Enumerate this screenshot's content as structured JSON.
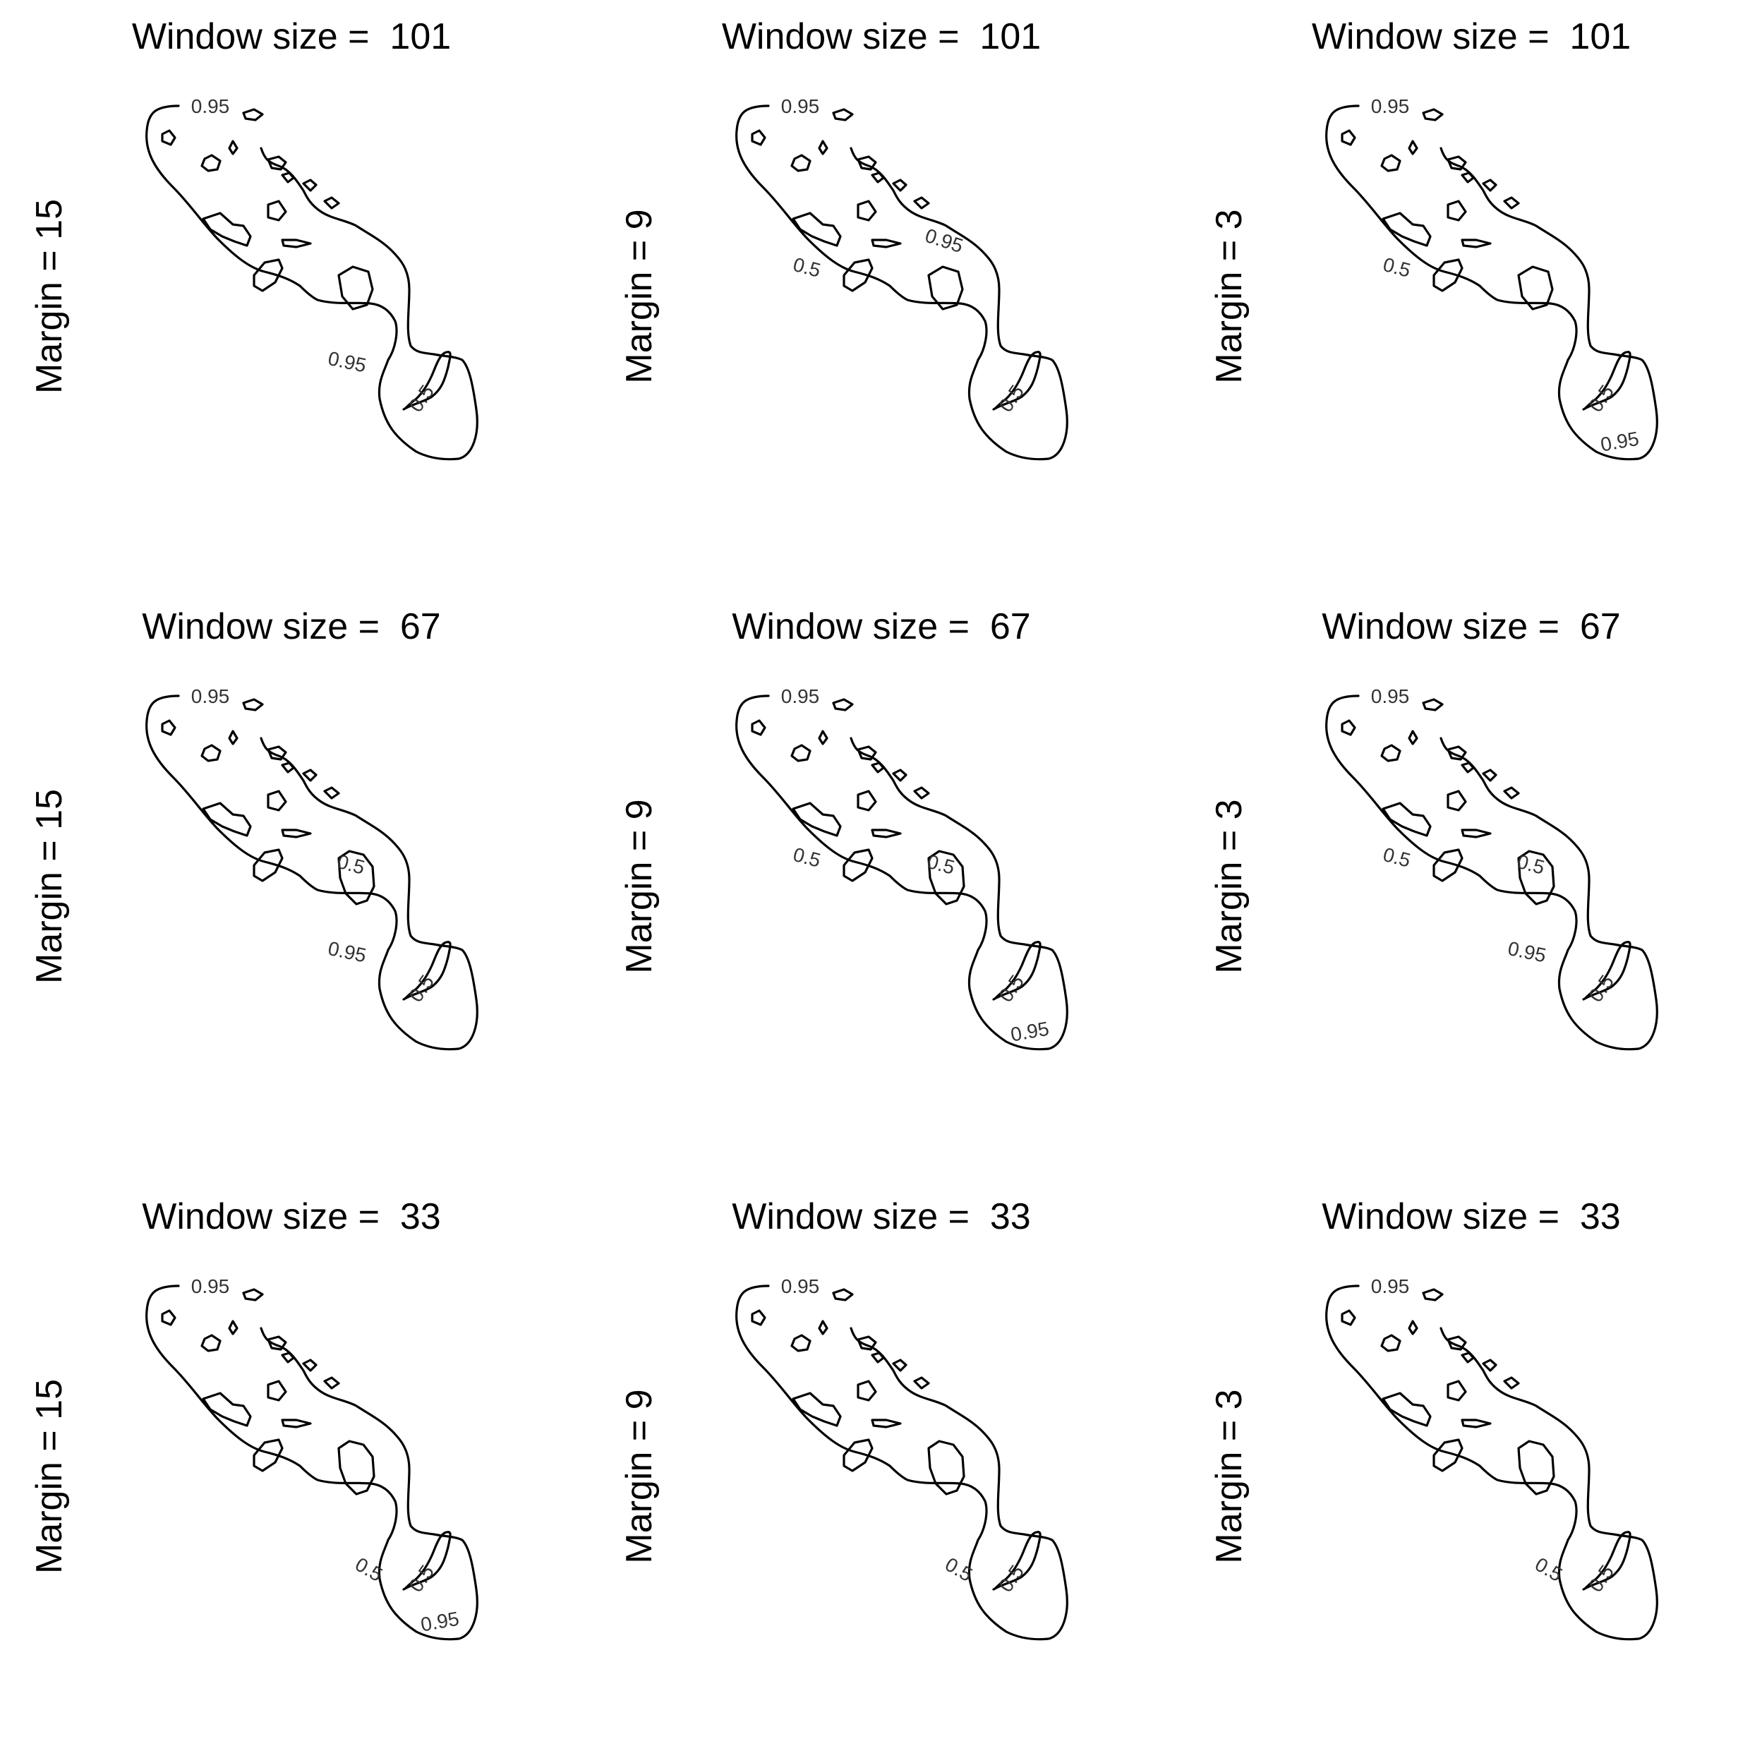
{
  "chart_data": {
    "type": "contour-grid",
    "contour_levels": [
      "0.5",
      "0.95"
    ],
    "panels": [
      {
        "title": "Window size =  101",
        "ylabel": "Margin = 15",
        "labels": [
          {
            "text": "0.95",
            "at": "top-left"
          },
          {
            "text": "0.95",
            "at": "neck"
          },
          {
            "text": "0.5",
            "at": "lobe"
          }
        ]
      },
      {
        "title": "Window size =  101",
        "ylabel": "Margin = 9",
        "labels": [
          {
            "text": "0.95",
            "at": "top-left"
          },
          {
            "text": "0.95",
            "at": "upper-right"
          },
          {
            "text": "0.5",
            "at": "left-middle"
          },
          {
            "text": "0.5",
            "at": "lobe"
          }
        ]
      },
      {
        "title": "Window size =  101",
        "ylabel": "Margin = 3",
        "labels": [
          {
            "text": "0.95",
            "at": "top-left"
          },
          {
            "text": "0.5",
            "at": "left-middle"
          },
          {
            "text": "0.5",
            "at": "lobe"
          },
          {
            "text": "0.95",
            "at": "lobe-bottom"
          }
        ]
      },
      {
        "title": "Window size =  67",
        "ylabel": "Margin = 15",
        "labels": [
          {
            "text": "0.95",
            "at": "top-left"
          },
          {
            "text": "0.5",
            "at": "center-right"
          },
          {
            "text": "0.95",
            "at": "neck"
          },
          {
            "text": "0.5",
            "at": "lobe"
          }
        ]
      },
      {
        "title": "Window size =  67",
        "ylabel": "Margin = 9",
        "labels": [
          {
            "text": "0.95",
            "at": "top-left"
          },
          {
            "text": "0.5",
            "at": "left-middle"
          },
          {
            "text": "0.5",
            "at": "center-right"
          },
          {
            "text": "0.5",
            "at": "lobe"
          },
          {
            "text": "0.95",
            "at": "lobe-bottom"
          }
        ]
      },
      {
        "title": "Window size =  67",
        "ylabel": "Margin = 3",
        "labels": [
          {
            "text": "0.95",
            "at": "top-left"
          },
          {
            "text": "0.5",
            "at": "left-middle"
          },
          {
            "text": "0.5",
            "at": "center-right"
          },
          {
            "text": "0.95",
            "at": "neck"
          },
          {
            "text": "0.5",
            "at": "lobe"
          }
        ]
      },
      {
        "title": "Window size =  33",
        "ylabel": "Margin = 15",
        "labels": [
          {
            "text": "0.95",
            "at": "top-left"
          },
          {
            "text": "0.5",
            "at": "right-middle"
          },
          {
            "text": "0.5",
            "at": "lobe"
          },
          {
            "text": "0.95",
            "at": "lobe-bottom"
          }
        ]
      },
      {
        "title": "Window size =  33",
        "ylabel": "Margin = 9",
        "labels": [
          {
            "text": "0.95",
            "at": "top-left"
          },
          {
            "text": "0.5",
            "at": "right-middle"
          },
          {
            "text": "0.5",
            "at": "lobe"
          }
        ]
      },
      {
        "title": "Window size =  33",
        "ylabel": "Margin = 3",
        "labels": [
          {
            "text": "0.95",
            "at": "top-left"
          },
          {
            "text": "0.5",
            "at": "right-middle"
          },
          {
            "text": "0.5",
            "at": "lobe"
          }
        ]
      }
    ]
  }
}
